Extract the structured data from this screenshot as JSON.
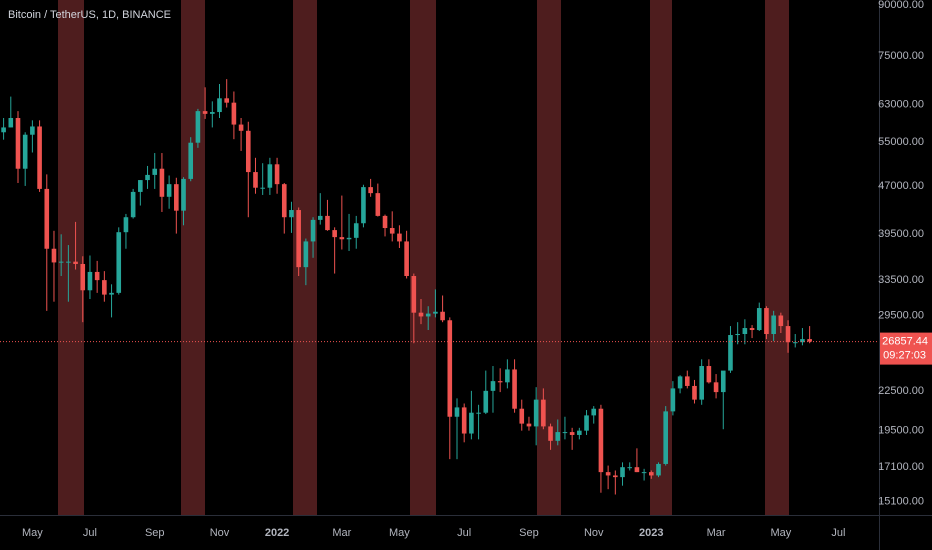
{
  "chart_data": {
    "type": "candlestick",
    "title": "Bitcoin / TetherUS, 1D, BINANCE",
    "log_scale": true,
    "grid": false,
    "up_color": "#26a69a",
    "down_color": "#ef5350",
    "ylim": [
      14400,
      91700
    ],
    "yticks": [
      {
        "value": 90000,
        "label": "90000.00"
      },
      {
        "value": 75000,
        "label": "75000.00"
      },
      {
        "value": 63000,
        "label": "63000.00"
      },
      {
        "value": 55000,
        "label": "55000.00"
      },
      {
        "value": 47000,
        "label": "47000.00"
      },
      {
        "value": 39500,
        "label": "39500.00"
      },
      {
        "value": 33500,
        "label": "33500.00"
      },
      {
        "value": 29500,
        "label": "29500.00"
      },
      {
        "value": 22500,
        "label": "22500.00"
      },
      {
        "value": 19500,
        "label": "19500.00"
      },
      {
        "value": 17100,
        "label": "17100.00"
      },
      {
        "value": 15100,
        "label": "15100.00"
      }
    ],
    "countdown": "09:27:03",
    "categories": [
      null,
      null,
      null,
      null,
      "May",
      null,
      null,
      null,
      null,
      null,
      null,
      null,
      "Jul",
      null,
      null,
      null,
      null,
      null,
      null,
      null,
      null,
      "Sep",
      null,
      null,
      null,
      null,
      null,
      null,
      null,
      null,
      "Nov",
      null,
      null,
      null,
      null,
      null,
      null,
      null,
      "2022",
      null,
      null,
      null,
      null,
      null,
      null,
      null,
      null,
      "Mar",
      null,
      null,
      null,
      null,
      null,
      null,
      null,
      "May",
      null,
      null,
      null,
      null,
      null,
      null,
      null,
      null,
      "Jul",
      null,
      null,
      null,
      null,
      null,
      null,
      null,
      null,
      "Sep",
      null,
      null,
      null,
      null,
      null,
      null,
      null,
      null,
      "Nov",
      null,
      null,
      null,
      null,
      null,
      null,
      null,
      "2023",
      null,
      null,
      null,
      null,
      null,
      null,
      null,
      null,
      "Mar",
      null,
      null,
      null,
      null,
      null,
      null,
      null,
      null,
      "May",
      null,
      null,
      null,
      null,
      null,
      null,
      null,
      "Jul",
      null,
      null,
      null,
      null,
      null
    ],
    "values": [
      [
        57000,
        60000,
        55500,
        58000
      ],
      [
        58000,
        64800,
        58000,
        60000
      ],
      [
        60000,
        61500,
        47500,
        50000
      ],
      [
        50000,
        57000,
        47000,
        56500
      ],
      [
        56500,
        59500,
        53000,
        58200
      ],
      [
        58200,
        59500,
        46000,
        46500
      ],
      [
        46500,
        49000,
        30000,
        37500
      ],
      [
        37500,
        40000,
        31000,
        35700
      ],
      [
        35700,
        39500,
        34000,
        35800
      ],
      [
        35800,
        38000,
        31000,
        35800
      ],
      [
        35800,
        41300,
        34800,
        35500
      ],
      [
        35500,
        36500,
        28800,
        32300
      ],
      [
        32300,
        36600,
        31300,
        34500
      ],
      [
        34500,
        35900,
        32000,
        33500
      ],
      [
        33500,
        34600,
        31000,
        31800
      ],
      [
        31800,
        33000,
        29300,
        32000
      ],
      [
        32000,
        40500,
        31800,
        39800
      ],
      [
        39800,
        42500,
        37500,
        42000
      ],
      [
        42000,
        46500,
        41800,
        46000
      ],
      [
        46000,
        48000,
        43800,
        48000
      ],
      [
        48000,
        50500,
        46500,
        48900
      ],
      [
        48900,
        52900,
        46500,
        50000
      ],
      [
        50000,
        52900,
        42800,
        45200
      ],
      [
        45200,
        48800,
        43300,
        47300
      ],
      [
        47300,
        48400,
        39600,
        43000
      ],
      [
        43000,
        48500,
        40800,
        48200
      ],
      [
        48200,
        56000,
        47800,
        54900
      ],
      [
        54900,
        62000,
        53900,
        61500
      ],
      [
        61500,
        67000,
        59800,
        60900
      ],
      [
        60900,
        63700,
        58000,
        61300
      ],
      [
        61300,
        67800,
        60000,
        64400
      ],
      [
        64400,
        69000,
        62300,
        63400
      ],
      [
        63400,
        66000,
        55600,
        58600
      ],
      [
        58600,
        60000,
        53300,
        57300
      ],
      [
        57300,
        59200,
        42000,
        49400
      ],
      [
        49400,
        52000,
        45700,
        46700
      ],
      [
        46700,
        51000,
        45500,
        46700
      ],
      [
        46700,
        52000,
        45500,
        50800
      ],
      [
        50800,
        52000,
        45700,
        47300
      ],
      [
        47300,
        47500,
        39600,
        42000
      ],
      [
        42000,
        44400,
        39700,
        43100
      ],
      [
        43100,
        43500,
        34000,
        35100
      ],
      [
        35100,
        38900,
        32900,
        38500
      ],
      [
        38500,
        42000,
        36300,
        41600
      ],
      [
        41600,
        45800,
        40900,
        42200
      ],
      [
        42200,
        44700,
        40000,
        40100
      ],
      [
        40100,
        40500,
        34300,
        39100
      ],
      [
        39100,
        45400,
        37400,
        38800
      ],
      [
        38800,
        42500,
        37200,
        39000
      ],
      [
        39000,
        42200,
        37500,
        41100
      ],
      [
        41100,
        47200,
        40500,
        46800
      ],
      [
        46800,
        48200,
        45200,
        45800
      ],
      [
        45800,
        47400,
        42100,
        42200
      ],
      [
        42200,
        42400,
        39200,
        40400
      ],
      [
        40400,
        42900,
        38500,
        39600
      ],
      [
        39600,
        40800,
        37600,
        38500
      ],
      [
        38500,
        40000,
        33700,
        34000
      ],
      [
        34000,
        34300,
        26700,
        29800
      ],
      [
        29800,
        31300,
        28600,
        29400
      ],
      [
        29400,
        30500,
        28000,
        29700
      ],
      [
        29700,
        32400,
        29300,
        29900
      ],
      [
        29900,
        31700,
        28800,
        29000
      ],
      [
        29000,
        29300,
        17600,
        20500
      ],
      [
        20500,
        21900,
        17600,
        21200
      ],
      [
        21200,
        21500,
        18700,
        19300
      ],
      [
        19300,
        22500,
        18900,
        20800
      ],
      [
        20800,
        21400,
        18900,
        20800
      ],
      [
        20800,
        24200,
        20700,
        22500
      ],
      [
        22500,
        24600,
        20800,
        23300
      ],
      [
        23300,
        24400,
        22400,
        23200
      ],
      [
        23200,
        25200,
        22700,
        24300
      ],
      [
        24300,
        25200,
        20800,
        21100
      ],
      [
        21100,
        21800,
        19500,
        20000
      ],
      [
        20000,
        20500,
        19500,
        19800
      ],
      [
        19800,
        22800,
        18500,
        21800
      ],
      [
        21800,
        22700,
        19600,
        19800
      ],
      [
        19800,
        20000,
        18200,
        18800
      ],
      [
        18800,
        20300,
        18500,
        19400
      ],
      [
        19400,
        20500,
        18900,
        19400
      ],
      [
        19400,
        19700,
        18200,
        19200
      ],
      [
        19200,
        19700,
        18900,
        19500
      ],
      [
        19500,
        21000,
        19200,
        20600
      ],
      [
        20600,
        21300,
        20000,
        21100
      ],
      [
        21100,
        21400,
        15600,
        16800
      ],
      [
        16800,
        17200,
        15800,
        16600
      ],
      [
        16600,
        16900,
        15500,
        16500
      ],
      [
        16500,
        17400,
        16000,
        17100
      ],
      [
        17100,
        17400,
        16900,
        17100
      ],
      [
        17100,
        18300,
        16800,
        16800
      ],
      [
        16800,
        17000,
        16300,
        16800
      ],
      [
        16800,
        16900,
        16400,
        16600
      ],
      [
        16600,
        17400,
        16500,
        17300
      ],
      [
        17300,
        21300,
        17200,
        20900
      ],
      [
        20900,
        23300,
        20600,
        22700
      ],
      [
        22700,
        23800,
        22300,
        23700
      ],
      [
        23700,
        24200,
        22700,
        22900
      ],
      [
        22900,
        23400,
        21500,
        21800
      ],
      [
        21800,
        25200,
        21400,
        24600
      ],
      [
        24600,
        25200,
        23100,
        23200
      ],
      [
        23200,
        23900,
        21900,
        22400
      ],
      [
        22400,
        22500,
        19600,
        24200
      ],
      [
        24200,
        28400,
        24000,
        27500
      ],
      [
        27500,
        28800,
        26600,
        27600
      ],
      [
        27600,
        29100,
        26600,
        28200
      ],
      [
        28200,
        28500,
        27200,
        28000
      ],
      [
        28000,
        30900,
        27900,
        30300
      ],
      [
        30300,
        30500,
        27100,
        27600
      ],
      [
        27600,
        30000,
        26900,
        29500
      ],
      [
        29500,
        29800,
        27700,
        28400
      ],
      [
        28400,
        29000,
        25800,
        26800
      ],
      [
        26800,
        27600,
        26300,
        26800
      ],
      [
        26800,
        28200,
        26500,
        27100
      ],
      [
        27100,
        28400,
        26700,
        26857.44
      ],
      null,
      null,
      null,
      null,
      null,
      null,
      null,
      null,
      null
    ]
  }
}
